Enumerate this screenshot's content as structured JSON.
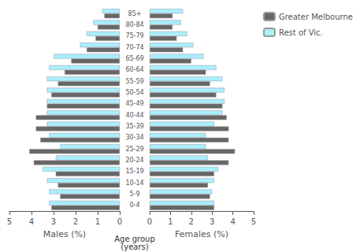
{
  "chart_data": [
    {
      "type": "bar",
      "orientation": "horizontal",
      "categories": [
        "0-4",
        "5-9",
        "10-14",
        "15-19",
        "20-24",
        "25-29",
        "30-34",
        "35-39",
        "40-44",
        "45-49",
        "50-54",
        "55-59",
        "60-64",
        "65-69",
        "70-74",
        "75-79",
        "80-84",
        "85+"
      ],
      "series": [
        {
          "name": "Greater Melbourne",
          "color": "#666666",
          "values": [
            3.1,
            2.7,
            2.8,
            2.9,
            3.9,
            4.1,
            3.6,
            3.8,
            3.8,
            3.3,
            3.1,
            2.8,
            2.5,
            2.2,
            1.5,
            1.1,
            1.0,
            0.7
          ]
        },
        {
          "name": "Rest of Vic.",
          "color": "#aaeeff",
          "values": [
            3.2,
            3.2,
            3.3,
            3.5,
            2.9,
            2.7,
            3.2,
            3.3,
            3.3,
            3.3,
            3.3,
            3.3,
            3.2,
            3.0,
            1.8,
            1.5,
            1.2,
            0.8
          ]
        }
      ],
      "xlabel": "Males (%)",
      "ylabel": "Age group\n(years)",
      "xlim": [
        5,
        0
      ],
      "xticks": [
        0,
        1,
        2,
        3,
        4,
        5
      ],
      "grid": false,
      "legend": "upper right"
    },
    {
      "type": "bar",
      "orientation": "horizontal",
      "categories": [
        "0-4",
        "5-9",
        "10-14",
        "15-19",
        "20-24",
        "25-29",
        "30-34",
        "35-39",
        "40-44",
        "45-49",
        "50-54",
        "55-59",
        "60-64",
        "65-69",
        "70-74",
        "75-79",
        "80-84",
        "85+"
      ],
      "series": [
        {
          "name": "Greater Melbourne",
          "color": "#666666",
          "values": [
            3.1,
            2.9,
            2.8,
            3.1,
            3.8,
            4.1,
            3.8,
            3.8,
            3.7,
            3.5,
            3.2,
            2.9,
            2.7,
            2.0,
            1.6,
            1.3,
            1.1,
            1.1
          ]
        },
        {
          "name": "Rest of Vic.",
          "color": "#aaeeff",
          "values": [
            3.1,
            3.0,
            3.1,
            3.3,
            2.8,
            2.7,
            2.7,
            3.1,
            3.5,
            3.6,
            3.6,
            3.5,
            3.2,
            2.6,
            2.1,
            1.8,
            1.5,
            1.6
          ]
        }
      ],
      "xlabel": "Females (%)",
      "xlim": [
        0,
        5
      ],
      "xticks": [
        0,
        1,
        2,
        3,
        4,
        5
      ],
      "grid": false
    }
  ]
}
